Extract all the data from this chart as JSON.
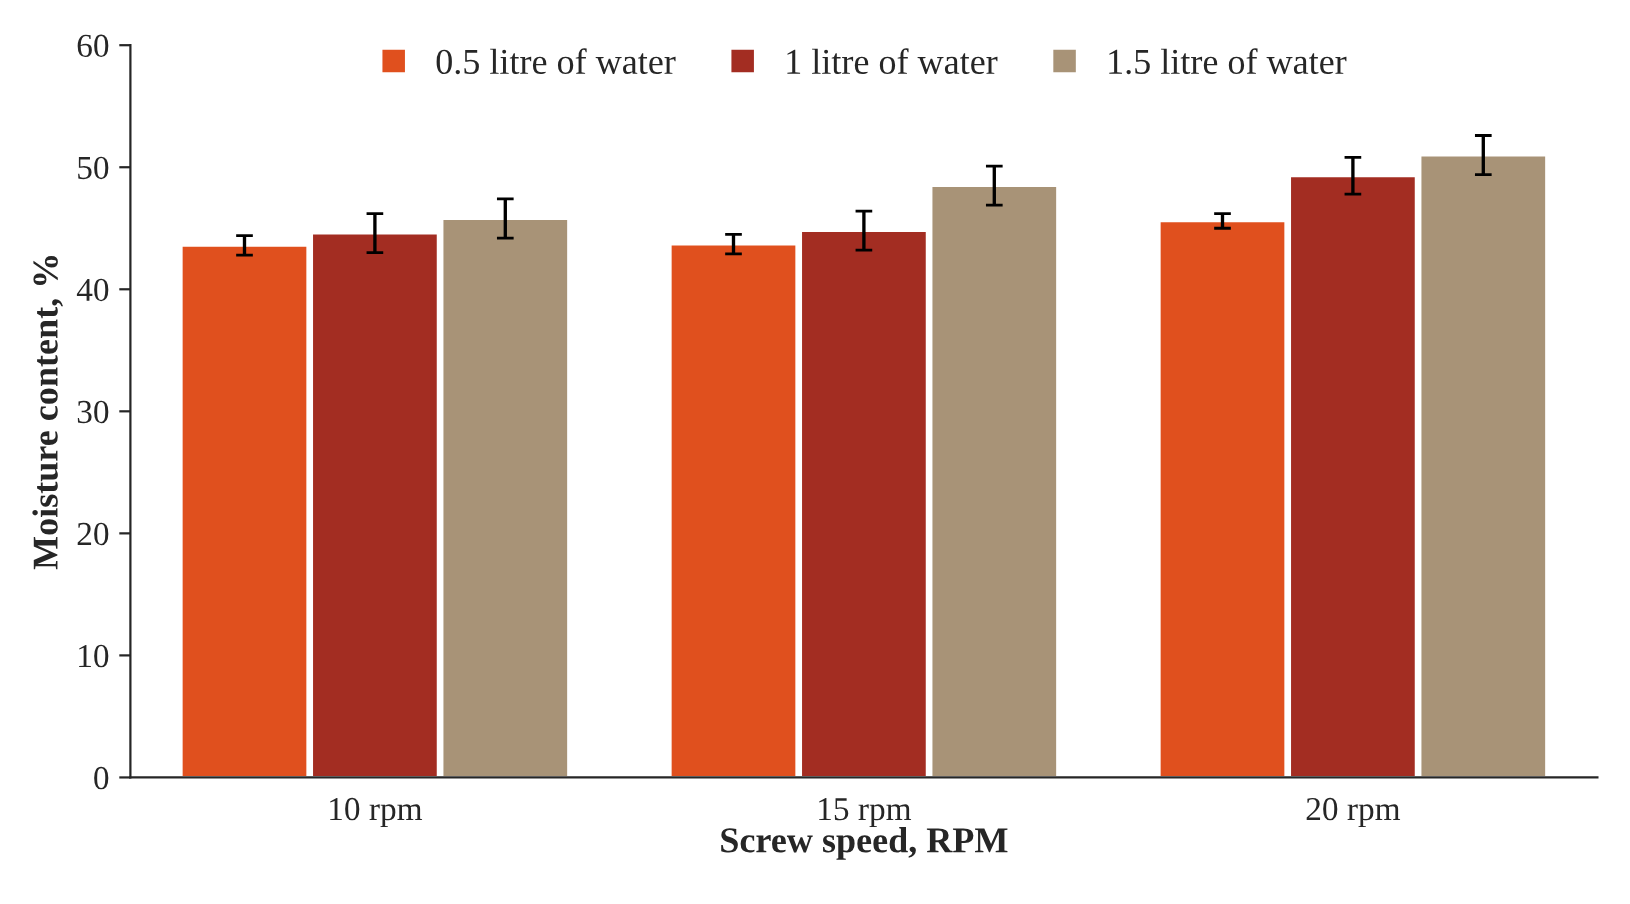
{
  "chart_data": {
    "type": "bar",
    "xlabel": "Screw speed, RPM",
    "ylabel": "Moisture content, %",
    "categories": [
      "10 rpm",
      "15 rpm",
      "20 rpm"
    ],
    "series": [
      {
        "name": "0.5 litre of water",
        "color": "#e0501e",
        "values": [
          43.6,
          43.7,
          45.6
        ],
        "errors": [
          0.8,
          0.8,
          0.6
        ]
      },
      {
        "name": "1 litre of water",
        "color": "#a32d22",
        "values": [
          44.6,
          44.8,
          49.3
        ],
        "errors": [
          1.6,
          1.6,
          1.5
        ]
      },
      {
        "name": "1.5 litre of water",
        "color": "#a89377",
        "values": [
          45.8,
          48.5,
          51.0
        ],
        "errors": [
          1.6,
          1.6,
          1.6
        ]
      }
    ],
    "ylim": [
      0,
      60
    ],
    "yticks": [
      0,
      10,
      20,
      30,
      40,
      50,
      60
    ],
    "grid": false,
    "legend": "top"
  }
}
